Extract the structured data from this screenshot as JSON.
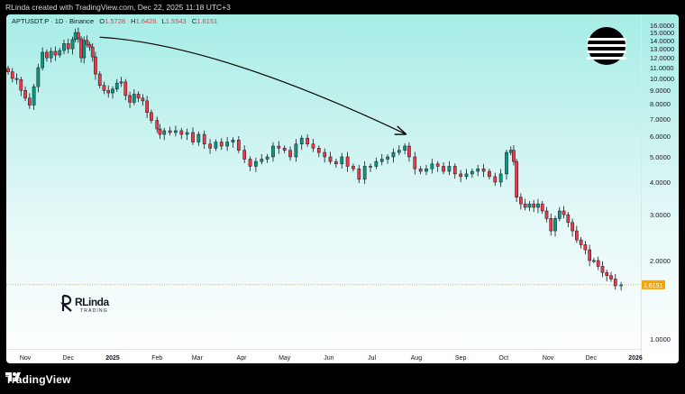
{
  "header": {
    "text": "RLinda created with TradingView.com, Dec 22, 2025 11:18 UTC+3"
  },
  "legend": {
    "symbol": "APTUSDT.P · 1D · Binance",
    "open_label": "O",
    "open": "1.5728",
    "high_label": "H",
    "high": "1.6426",
    "low_label": "L",
    "low": "1.5543",
    "close_label": "C",
    "close": "1.6151"
  },
  "watermark": {
    "big": "RLinda",
    "small": "TRADING"
  },
  "footer": {
    "brand": "TradingView"
  },
  "colors": {
    "up": "#089981",
    "down": "#f23645",
    "candle": "#131722",
    "last_price": "#f7a600",
    "arrow": "#000000"
  },
  "icons": {
    "brand_logo": "aptos-logo-icon",
    "footer_logo": "tradingview-logo-icon"
  },
  "chart_data": {
    "type": "candlestick",
    "symbol": "APTUSDT.P",
    "timeframe": "1D",
    "exchange": "Binance",
    "yaxis": {
      "position": "right",
      "ticks": [
        1,
        2,
        3,
        4,
        5,
        6,
        7,
        8,
        9,
        10,
        11,
        12,
        13,
        14,
        15,
        16
      ],
      "tick_labels": [
        "1.0000",
        "2.0000",
        "3.0000",
        "4.0000",
        "5.0000",
        "6.0000",
        "7.0000",
        "8.0000",
        "9.0000",
        "10.0000",
        "11.0000",
        "12.0000",
        "13.0000",
        "14.0000",
        "15.0000",
        "16.0000"
      ],
      "scale": "log"
    },
    "xaxis": {
      "ticks": [
        {
          "label": "Nov",
          "date": "2024-11-01"
        },
        {
          "label": "Dec",
          "date": "2024-12-01"
        },
        {
          "label": "2025",
          "date": "2025-01-01",
          "bold": true
        },
        {
          "label": "Feb",
          "date": "2025-02-01"
        },
        {
          "label": "Mar",
          "date": "2025-03-01"
        },
        {
          "label": "Apr",
          "date": "2025-04-01"
        },
        {
          "label": "May",
          "date": "2025-05-01"
        },
        {
          "label": "Jun",
          "date": "2025-06-01"
        },
        {
          "label": "Jul",
          "date": "2025-07-01"
        },
        {
          "label": "Aug",
          "date": "2025-08-01"
        },
        {
          "label": "Sep",
          "date": "2025-09-01"
        },
        {
          "label": "Oct",
          "date": "2025-10-01"
        },
        {
          "label": "Nov",
          "date": "2025-11-01"
        },
        {
          "label": "Dec",
          "date": "2025-12-01"
        },
        {
          "label": "2026",
          "date": "2026-01-01",
          "bold": true
        }
      ]
    },
    "last_price": {
      "value": 1.6151,
      "label": "1.6151"
    },
    "series": [
      {
        "date": "2024-10-20",
        "close": 10.6
      },
      {
        "date": "2024-10-23",
        "close": 10.0
      },
      {
        "date": "2024-10-26",
        "close": 9.9
      },
      {
        "date": "2024-10-29",
        "close": 9.0
      },
      {
        "date": "2024-11-01",
        "close": 8.4
      },
      {
        "date": "2024-11-04",
        "close": 7.9
      },
      {
        "date": "2024-11-07",
        "close": 9.3
      },
      {
        "date": "2024-11-10",
        "close": 11.0
      },
      {
        "date": "2024-11-13",
        "close": 12.6
      },
      {
        "date": "2024-11-16",
        "close": 12.0
      },
      {
        "date": "2024-11-19",
        "close": 12.7
      },
      {
        "date": "2024-11-22",
        "close": 12.3
      },
      {
        "date": "2024-11-25",
        "close": 12.8
      },
      {
        "date": "2024-11-28",
        "close": 13.6
      },
      {
        "date": "2024-12-01",
        "close": 13.0
      },
      {
        "date": "2024-12-04",
        "close": 14.1
      },
      {
        "date": "2024-12-06",
        "close": 15.0
      },
      {
        "date": "2024-12-08",
        "close": 14.2
      },
      {
        "date": "2024-12-10",
        "close": 12.0
      },
      {
        "date": "2024-12-12",
        "close": 14.0
      },
      {
        "date": "2024-12-14",
        "close": 13.5
      },
      {
        "date": "2024-12-16",
        "close": 13.2
      },
      {
        "date": "2024-12-18",
        "close": 12.1
      },
      {
        "date": "2024-12-20",
        "close": 10.4
      },
      {
        "date": "2024-12-23",
        "close": 9.4
      },
      {
        "date": "2024-12-26",
        "close": 9.0
      },
      {
        "date": "2024-12-29",
        "close": 8.8
      },
      {
        "date": "2025-01-01",
        "close": 9.1
      },
      {
        "date": "2025-01-04",
        "close": 9.6
      },
      {
        "date": "2025-01-07",
        "close": 9.7
      },
      {
        "date": "2025-01-10",
        "close": 8.6
      },
      {
        "date": "2025-01-13",
        "close": 8.1
      },
      {
        "date": "2025-01-16",
        "close": 8.7
      },
      {
        "date": "2025-01-19",
        "close": 8.4
      },
      {
        "date": "2025-01-22",
        "close": 8.2
      },
      {
        "date": "2025-01-25",
        "close": 7.4
      },
      {
        "date": "2025-01-28",
        "close": 6.9
      },
      {
        "date": "2025-02-01",
        "close": 6.4
      },
      {
        "date": "2025-02-03",
        "close": 6.1
      },
      {
        "date": "2025-02-06",
        "close": 6.3
      },
      {
        "date": "2025-02-10",
        "close": 6.2
      },
      {
        "date": "2025-02-14",
        "close": 6.3
      },
      {
        "date": "2025-02-18",
        "close": 6.1
      },
      {
        "date": "2025-02-22",
        "close": 6.2
      },
      {
        "date": "2025-02-26",
        "close": 5.7
      },
      {
        "date": "2025-03-02",
        "close": 6.1
      },
      {
        "date": "2025-03-06",
        "close": 5.6
      },
      {
        "date": "2025-03-10",
        "close": 5.4
      },
      {
        "date": "2025-03-14",
        "close": 5.7
      },
      {
        "date": "2025-03-18",
        "close": 5.5
      },
      {
        "date": "2025-03-22",
        "close": 5.7
      },
      {
        "date": "2025-03-26",
        "close": 5.8
      },
      {
        "date": "2025-03-30",
        "close": 5.3
      },
      {
        "date": "2025-04-03",
        "close": 4.9
      },
      {
        "date": "2025-04-07",
        "close": 4.6
      },
      {
        "date": "2025-04-11",
        "close": 4.8
      },
      {
        "date": "2025-04-15",
        "close": 4.9
      },
      {
        "date": "2025-04-19",
        "close": 5.0
      },
      {
        "date": "2025-04-23",
        "close": 5.5
      },
      {
        "date": "2025-04-27",
        "close": 5.4
      },
      {
        "date": "2025-05-01",
        "close": 5.3
      },
      {
        "date": "2025-05-05",
        "close": 5.0
      },
      {
        "date": "2025-05-09",
        "close": 5.6
      },
      {
        "date": "2025-05-13",
        "close": 5.9
      },
      {
        "date": "2025-05-17",
        "close": 5.6
      },
      {
        "date": "2025-05-21",
        "close": 5.4
      },
      {
        "date": "2025-05-25",
        "close": 5.2
      },
      {
        "date": "2025-05-29",
        "close": 5.0
      },
      {
        "date": "2025-06-02",
        "close": 4.8
      },
      {
        "date": "2025-06-06",
        "close": 4.7
      },
      {
        "date": "2025-06-10",
        "close": 5.0
      },
      {
        "date": "2025-06-14",
        "close": 4.6
      },
      {
        "date": "2025-06-18",
        "close": 4.5
      },
      {
        "date": "2025-06-22",
        "close": 4.1
      },
      {
        "date": "2025-06-26",
        "close": 4.6
      },
      {
        "date": "2025-06-30",
        "close": 4.6
      },
      {
        "date": "2025-07-04",
        "close": 4.8
      },
      {
        "date": "2025-07-08",
        "close": 4.9
      },
      {
        "date": "2025-07-12",
        "close": 5.0
      },
      {
        "date": "2025-07-16",
        "close": 5.2
      },
      {
        "date": "2025-07-20",
        "close": 5.3
      },
      {
        "date": "2025-07-24",
        "close": 5.5
      },
      {
        "date": "2025-07-27",
        "close": 5.0
      },
      {
        "date": "2025-07-31",
        "close": 4.5
      },
      {
        "date": "2025-08-04",
        "close": 4.4
      },
      {
        "date": "2025-08-08",
        "close": 4.5
      },
      {
        "date": "2025-08-12",
        "close": 4.7
      },
      {
        "date": "2025-08-16",
        "close": 4.6
      },
      {
        "date": "2025-08-20",
        "close": 4.4
      },
      {
        "date": "2025-08-24",
        "close": 4.6
      },
      {
        "date": "2025-08-28",
        "close": 4.3
      },
      {
        "date": "2025-09-01",
        "close": 4.2
      },
      {
        "date": "2025-09-05",
        "close": 4.3
      },
      {
        "date": "2025-09-09",
        "close": 4.4
      },
      {
        "date": "2025-09-13",
        "close": 4.5
      },
      {
        "date": "2025-09-17",
        "close": 4.4
      },
      {
        "date": "2025-09-21",
        "close": 4.2
      },
      {
        "date": "2025-09-25",
        "close": 4.0
      },
      {
        "date": "2025-09-29",
        "close": 4.3
      },
      {
        "date": "2025-10-03",
        "close": 5.2
      },
      {
        "date": "2025-10-06",
        "close": 5.3
      },
      {
        "date": "2025-10-08",
        "close": 4.8
      },
      {
        "date": "2025-10-10",
        "close": 3.5
      },
      {
        "date": "2025-10-13",
        "close": 3.3
      },
      {
        "date": "2025-10-16",
        "close": 3.2
      },
      {
        "date": "2025-10-19",
        "close": 3.3
      },
      {
        "date": "2025-10-22",
        "close": 3.2
      },
      {
        "date": "2025-10-25",
        "close": 3.3
      },
      {
        "date": "2025-10-28",
        "close": 3.1
      },
      {
        "date": "2025-10-31",
        "close": 2.9
      },
      {
        "date": "2025-11-03",
        "close": 2.6
      },
      {
        "date": "2025-11-06",
        "close": 2.9
      },
      {
        "date": "2025-11-09",
        "close": 3.1
      },
      {
        "date": "2025-11-12",
        "close": 3.0
      },
      {
        "date": "2025-11-15",
        "close": 2.8
      },
      {
        "date": "2025-11-18",
        "close": 2.6
      },
      {
        "date": "2025-11-21",
        "close": 2.4
      },
      {
        "date": "2025-11-24",
        "close": 2.3
      },
      {
        "date": "2025-11-27",
        "close": 2.2
      },
      {
        "date": "2025-11-30",
        "close": 2.0
      },
      {
        "date": "2025-12-03",
        "close": 2.0
      },
      {
        "date": "2025-12-06",
        "close": 1.9
      },
      {
        "date": "2025-12-09",
        "close": 1.8
      },
      {
        "date": "2025-12-12",
        "close": 1.75
      },
      {
        "date": "2025-12-15",
        "close": 1.7
      },
      {
        "date": "2025-12-18",
        "close": 1.6
      },
      {
        "date": "2025-12-22",
        "close": 1.6151
      }
    ],
    "annotations": [
      {
        "type": "arrow",
        "from": {
          "date": "2024-12-23",
          "price": 14.4
        },
        "to": {
          "date": "2025-07-25",
          "price": 6.1
        }
      }
    ]
  }
}
